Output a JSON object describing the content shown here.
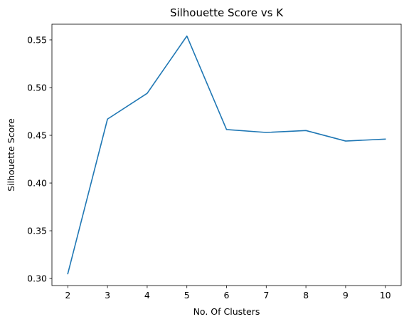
{
  "chart_data": {
    "type": "line",
    "title": "Silhouette Score vs K",
    "xlabel": "No. Of Clusters",
    "ylabel": "Silhouette Score",
    "x": [
      2,
      3,
      4,
      5,
      6,
      7,
      8,
      9,
      10
    ],
    "series": [
      {
        "values": [
          0.305,
          0.467,
          0.494,
          0.554,
          0.456,
          0.453,
          0.455,
          0.444,
          0.446
        ],
        "color": "#1f77b4"
      }
    ],
    "xticks": [
      "2",
      "3",
      "4",
      "5",
      "6",
      "7",
      "8",
      "9",
      "10"
    ],
    "yticks": [
      "0.30",
      "0.35",
      "0.40",
      "0.45",
      "0.50",
      "0.55"
    ],
    "xlim": [
      1.6,
      10.4
    ],
    "ylim": [
      0.2926,
      0.5664
    ],
    "grid": false,
    "legend": "none"
  }
}
